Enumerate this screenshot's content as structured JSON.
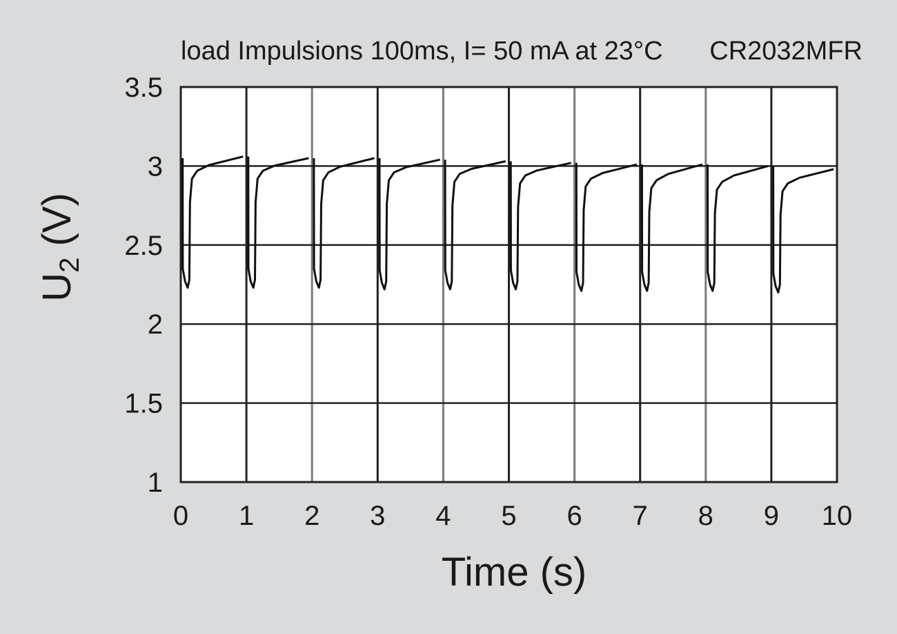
{
  "chart_data": {
    "type": "line",
    "title": "load Impulsions 100ms, I= 50 mA at 23°C",
    "subtitle": "CR2032MFR",
    "xlabel": "Time (s)",
    "ylabel_main": "U",
    "ylabel_sub": "2",
    "ylabel_unit": " (V)",
    "xlim": [
      0,
      10
    ],
    "ylim": [
      1,
      3.5
    ],
    "grid": true,
    "x_ticks": [
      {
        "value": 0,
        "label": "0"
      },
      {
        "value": 1,
        "label": "1"
      },
      {
        "value": 2,
        "label": "2"
      },
      {
        "value": 3,
        "label": "3"
      },
      {
        "value": 4,
        "label": "4"
      },
      {
        "value": 5,
        "label": "5"
      },
      {
        "value": 6,
        "label": "6"
      },
      {
        "value": 7,
        "label": "7"
      },
      {
        "value": 8,
        "label": "8"
      },
      {
        "value": 9,
        "label": "9"
      },
      {
        "value": 10,
        "label": "10"
      }
    ],
    "y_ticks": [
      {
        "value": 1,
        "label": "1"
      },
      {
        "value": 1.5,
        "label": "1.5"
      },
      {
        "value": 2,
        "label": "2"
      },
      {
        "value": 2.5,
        "label": "2.5"
      },
      {
        "value": 3,
        "label": "3"
      },
      {
        "value": 3.5,
        "label": "3.5"
      }
    ],
    "series": [
      {
        "color": "#111111",
        "pulse_period_s": 1,
        "pulse_duration_s": 0.1,
        "pulses": [
          {
            "start": 0.0,
            "pre": 3.05,
            "min": 2.23,
            "mid": 2.97,
            "end": 3.06
          },
          {
            "start": 1.0,
            "pre": 3.06,
            "min": 2.23,
            "mid": 2.97,
            "end": 3.05
          },
          {
            "start": 2.0,
            "pre": 3.05,
            "min": 2.23,
            "mid": 2.96,
            "end": 3.05
          },
          {
            "start": 3.0,
            "pre": 3.05,
            "min": 2.22,
            "mid": 2.96,
            "end": 3.04
          },
          {
            "start": 4.0,
            "pre": 3.04,
            "min": 2.22,
            "mid": 2.95,
            "end": 3.03
          },
          {
            "start": 5.0,
            "pre": 3.03,
            "min": 2.22,
            "mid": 2.94,
            "end": 3.02
          },
          {
            "start": 6.0,
            "pre": 3.02,
            "min": 2.21,
            "mid": 2.92,
            "end": 3.01
          },
          {
            "start": 7.0,
            "pre": 3.01,
            "min": 2.21,
            "mid": 2.91,
            "end": 3.01
          },
          {
            "start": 8.0,
            "pre": 3.01,
            "min": 2.21,
            "mid": 2.9,
            "end": 3.0
          },
          {
            "start": 9.0,
            "pre": 3.0,
            "min": 2.2,
            "mid": 2.89,
            "end": 2.98
          }
        ]
      }
    ]
  }
}
